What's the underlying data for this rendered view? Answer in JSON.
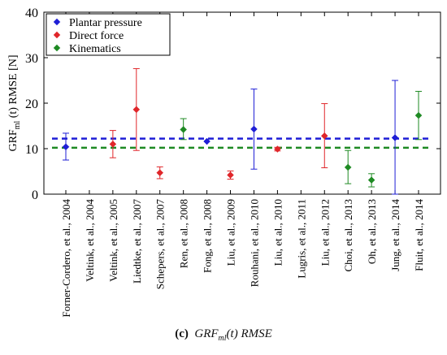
{
  "chart_data": {
    "type": "scatter",
    "ylabel": {
      "main": "GRF",
      "sub": "ml",
      "rest": " (t) RMSE [N]"
    },
    "ylim": [
      0,
      40
    ],
    "yticks": [
      0,
      10,
      20,
      30,
      40
    ],
    "grid": false,
    "legend_position": "top-left",
    "categories": [
      "Forner-Cordero, et al., 2004",
      "Veltink, et al., 2004",
      "Veltink, et al., 2005",
      "Liedtke, et al., 2007",
      "Schepers, et al., 2007",
      "Ren, et al., 2008",
      "Fong, et al., 2008",
      "Liu, et al., 2009",
      "Rouhani, et al., 2010",
      "Liu, et al., 2010",
      "Lugris, et al., 2011",
      "Liu, et al., 2012",
      "Choi, et al., 2013",
      "Oh, et al., 2013",
      "Jung, et al., 2014",
      "Fluit, et al., 2014"
    ],
    "series": [
      {
        "name": "Plantar pressure",
        "color": "#1f1fd6",
        "mean_line": 12.2,
        "points": [
          {
            "category": "Forner-Cordero, et al., 2004",
            "value": 10.4,
            "low": 7.5,
            "high": 13.4
          },
          {
            "category": "Fong, et al., 2008",
            "value": 11.6,
            "low": 11.6,
            "high": 11.6
          },
          {
            "category": "Rouhani, et al., 2010",
            "value": 14.3,
            "low": 5.5,
            "high": 23.1
          },
          {
            "category": "Jung, et al., 2014",
            "value": 12.4,
            "low": 0,
            "high": 25.0
          }
        ]
      },
      {
        "name": "Direct force",
        "color": "#e0262a",
        "mean_line": null,
        "points": [
          {
            "category": "Veltink, et al., 2005",
            "value": 11.0,
            "low": 8.0,
            "high": 14.0
          },
          {
            "category": "Liedtke, et al., 2007",
            "value": 18.6,
            "low": 9.6,
            "high": 27.6
          },
          {
            "category": "Schepers, et al., 2007",
            "value": 4.7,
            "low": 3.4,
            "high": 6.0
          },
          {
            "category": "Liu, et al., 2009",
            "value": 4.2,
            "low": 3.3,
            "high": 5.1
          },
          {
            "category": "Liu, et al., 2010",
            "value": 9.9,
            "low": 9.5,
            "high": 10.3
          },
          {
            "category": "Liu, et al., 2012",
            "value": 12.8,
            "low": 5.8,
            "high": 19.9
          }
        ]
      },
      {
        "name": "Kinematics",
        "color": "#1e8a23",
        "mean_line": 10.2,
        "points": [
          {
            "category": "Ren, et al., 2008",
            "value": 14.2,
            "low": 12.0,
            "high": 16.6
          },
          {
            "category": "Choi, et al., 2013",
            "value": 5.9,
            "low": 2.3,
            "high": 9.6
          },
          {
            "category": "Oh, et al., 2013",
            "value": 3.1,
            "low": 1.6,
            "high": 4.5
          },
          {
            "category": "Fluit, et al., 2014",
            "value": 17.3,
            "low": 12.0,
            "high": 22.6
          }
        ]
      }
    ],
    "dashed_lines": [
      {
        "series": "Plantar pressure",
        "value": 12.2,
        "color": "#1f1fd6"
      },
      {
        "series": "Kinematics",
        "value": 10.2,
        "color": "#1e8a23"
      }
    ]
  },
  "caption": {
    "tag": "(c)",
    "main": "GRF",
    "sub": "ml",
    "rest": "(t) RMSE"
  }
}
